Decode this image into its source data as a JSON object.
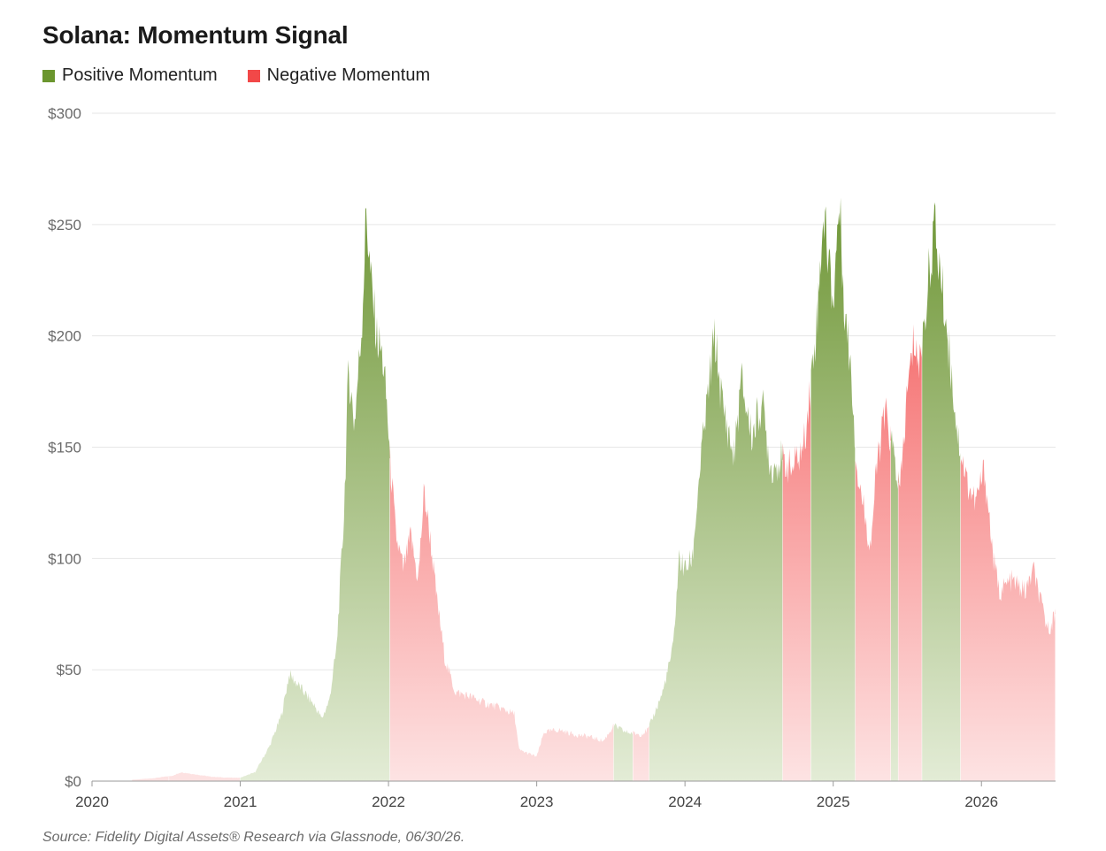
{
  "title": "Solana: Momentum Signal",
  "legend": [
    {
      "label": "Positive Momentum",
      "color": "#6b962e"
    },
    {
      "label": "Negative Momentum",
      "color": "#f24848"
    }
  ],
  "source": "Source: Fidelity Digital Assets® Research via Glassnode, 06/30/26.",
  "chart_data": {
    "type": "area",
    "title": "Solana: Momentum Signal",
    "xlabel": "",
    "ylabel": "",
    "x_range": [
      2020.0,
      2026.5
    ],
    "ylim": [
      0,
      300
    ],
    "y_ticks": [
      0,
      50,
      100,
      150,
      200,
      250,
      300
    ],
    "y_tick_labels": [
      "$0",
      "$50",
      "$100",
      "$150",
      "$200",
      "$250",
      "$300"
    ],
    "x_ticks": [
      2020,
      2021,
      2022,
      2023,
      2024,
      2025,
      2026
    ],
    "x_tick_labels": [
      "2020",
      "2021",
      "2022",
      "2023",
      "2024",
      "2025",
      "2026"
    ],
    "grid": true,
    "legend_position": "top-left",
    "series": [
      {
        "name": "Positive Momentum",
        "color": "#6b962e"
      },
      {
        "name": "Negative Momentum",
        "color": "#f24848"
      }
    ],
    "price_points": [
      [
        2020.27,
        0.6
      ],
      [
        2020.4,
        1.2
      ],
      [
        2020.55,
        2.5
      ],
      [
        2020.6,
        4.0
      ],
      [
        2020.7,
        3.0
      ],
      [
        2020.8,
        2.0
      ],
      [
        2020.9,
        1.6
      ],
      [
        2021.0,
        1.5
      ],
      [
        2021.1,
        4
      ],
      [
        2021.15,
        10
      ],
      [
        2021.2,
        16
      ],
      [
        2021.28,
        30
      ],
      [
        2021.33,
        48
      ],
      [
        2021.38,
        44
      ],
      [
        2021.43,
        40
      ],
      [
        2021.5,
        34
      ],
      [
        2021.55,
        28
      ],
      [
        2021.6,
        36
      ],
      [
        2021.65,
        60
      ],
      [
        2021.7,
        120
      ],
      [
        2021.73,
        185
      ],
      [
        2021.77,
        160
      ],
      [
        2021.82,
        205
      ],
      [
        2021.85,
        256
      ],
      [
        2021.88,
        225
      ],
      [
        2021.92,
        200
      ],
      [
        2021.96,
        190
      ],
      [
        2021.99,
        168
      ],
      [
        2022.01,
        145
      ],
      [
        2022.05,
        110
      ],
      [
        2022.1,
        95
      ],
      [
        2022.15,
        110
      ],
      [
        2022.2,
        90
      ],
      [
        2022.24,
        130
      ],
      [
        2022.28,
        110
      ],
      [
        2022.32,
        85
      ],
      [
        2022.38,
        55
      ],
      [
        2022.45,
        40
      ],
      [
        2022.55,
        38
      ],
      [
        2022.65,
        35
      ],
      [
        2022.75,
        33
      ],
      [
        2022.85,
        30
      ],
      [
        2022.88,
        14
      ],
      [
        2023.0,
        11
      ],
      [
        2023.05,
        22
      ],
      [
        2023.15,
        23
      ],
      [
        2023.25,
        21
      ],
      [
        2023.35,
        20
      ],
      [
        2023.45,
        18
      ],
      [
        2023.52,
        25
      ],
      [
        2023.6,
        22
      ],
      [
        2023.7,
        21
      ],
      [
        2023.75,
        23
      ],
      [
        2023.85,
        40
      ],
      [
        2023.92,
        60
      ],
      [
        2023.96,
        100
      ],
      [
        2024.0,
        95
      ],
      [
        2024.05,
        100
      ],
      [
        2024.1,
        140
      ],
      [
        2024.2,
        200
      ],
      [
        2024.25,
        170
      ],
      [
        2024.33,
        145
      ],
      [
        2024.38,
        180
      ],
      [
        2024.45,
        155
      ],
      [
        2024.52,
        170
      ],
      [
        2024.58,
        140
      ],
      [
        2024.65,
        145
      ],
      [
        2024.72,
        140
      ],
      [
        2024.8,
        150
      ],
      [
        2024.85,
        180
      ],
      [
        2024.9,
        215
      ],
      [
        2024.93,
        255
      ],
      [
        2024.97,
        235
      ],
      [
        2025.0,
        215
      ],
      [
        2025.04,
        260
      ],
      [
        2025.08,
        210
      ],
      [
        2025.12,
        185
      ],
      [
        2025.16,
        140
      ],
      [
        2025.2,
        125
      ],
      [
        2025.25,
        105
      ],
      [
        2025.3,
        145
      ],
      [
        2025.35,
        165
      ],
      [
        2025.4,
        150
      ],
      [
        2025.45,
        130
      ],
      [
        2025.5,
        175
      ],
      [
        2025.55,
        200
      ],
      [
        2025.58,
        185
      ],
      [
        2025.62,
        210
      ],
      [
        2025.68,
        250
      ],
      [
        2025.72,
        230
      ],
      [
        2025.78,
        195
      ],
      [
        2025.84,
        155
      ],
      [
        2025.9,
        135
      ],
      [
        2025.96,
        125
      ],
      [
        2026.02,
        140
      ],
      [
        2026.08,
        100
      ],
      [
        2026.12,
        85
      ],
      [
        2026.2,
        90
      ],
      [
        2026.3,
        85
      ],
      [
        2026.35,
        95
      ],
      [
        2026.4,
        80
      ],
      [
        2026.45,
        68
      ],
      [
        2026.5,
        75
      ]
    ],
    "momentum_regimes": [
      {
        "start": 2020.27,
        "end": 2020.52,
        "signal": "Negative Momentum"
      },
      {
        "start": 2020.52,
        "end": 2021.0,
        "signal": "Negative Momentum"
      },
      {
        "start": 2021.0,
        "end": 2022.01,
        "signal": "Positive Momentum"
      },
      {
        "start": 2022.01,
        "end": 2023.52,
        "signal": "Negative Momentum"
      },
      {
        "start": 2023.52,
        "end": 2023.65,
        "signal": "Positive Momentum"
      },
      {
        "start": 2023.65,
        "end": 2023.76,
        "signal": "Negative Momentum"
      },
      {
        "start": 2023.76,
        "end": 2024.66,
        "signal": "Positive Momentum"
      },
      {
        "start": 2024.66,
        "end": 2024.85,
        "signal": "Negative Momentum"
      },
      {
        "start": 2024.85,
        "end": 2025.15,
        "signal": "Positive Momentum"
      },
      {
        "start": 2025.15,
        "end": 2025.39,
        "signal": "Negative Momentum"
      },
      {
        "start": 2025.39,
        "end": 2025.44,
        "signal": "Positive Momentum"
      },
      {
        "start": 2025.44,
        "end": 2025.6,
        "signal": "Negative Momentum"
      },
      {
        "start": 2025.6,
        "end": 2025.86,
        "signal": "Positive Momentum"
      },
      {
        "start": 2025.86,
        "end": 2026.5,
        "signal": "Negative Momentum"
      }
    ]
  }
}
